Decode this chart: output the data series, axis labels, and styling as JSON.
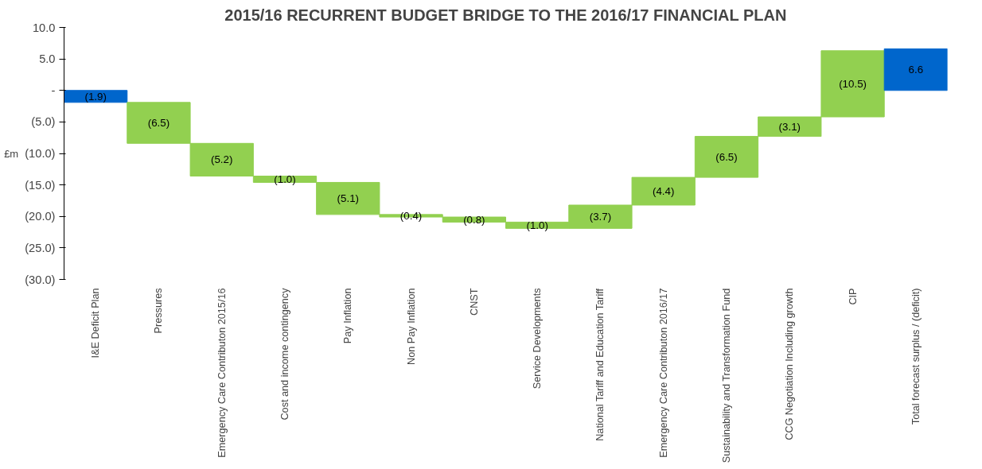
{
  "chart_data": {
    "type": "bar",
    "title": "2015/16 RECURRENT BUDGET BRIDGE TO THE 2016/17 FINANCIAL PLAN",
    "ylabel": "£m",
    "categories": [
      "I&E Deficit Plan",
      "Pressures",
      "Emergency Care Contributon 2015/16",
      "Cost and income contingency",
      "Pay Inflation",
      "Non Pay Inflation",
      "CNST",
      "Service Developments",
      "National Tariff and Education Tariff",
      "Emergency Care Contributon 2016/17",
      "Sustainability and Transformation Fund",
      "CCG Negotiation Including growth",
      "CIP",
      "Total forecast surplus / (deficit)"
    ],
    "values": [
      -1.9,
      -6.5,
      -5.2,
      -1.0,
      -5.1,
      -0.4,
      -0.8,
      -1.0,
      3.7,
      4.4,
      6.5,
      3.1,
      10.5,
      6.6
    ],
    "base": [
      0,
      -1.9,
      -8.4,
      -13.6,
      -14.6,
      -19.7,
      -20.1,
      -20.9,
      -21.9,
      -18.2,
      -13.8,
      -7.3,
      -4.2,
      0
    ],
    "colors": [
      "#0066cc",
      "#92d050",
      "#92d050",
      "#92d050",
      "#92d050",
      "#92d050",
      "#92d050",
      "#92d050",
      "#92d050",
      "#92d050",
      "#92d050",
      "#92d050",
      "#92d050",
      "#0066cc"
    ],
    "value_labels": [
      "(1.9)",
      "(6.5)",
      "(5.2)",
      "(1.0)",
      "(5.1)",
      "(0.4)",
      "(0.8)",
      "(1.0)",
      "(3.7)",
      "(4.4)",
      "(6.5)",
      "(3.1)",
      "(10.5)",
      "6.6"
    ],
    "ylim": [
      -30,
      10
    ],
    "yticks": [
      {
        "value": 10,
        "label": "10.0"
      },
      {
        "value": 5,
        "label": "5.0"
      },
      {
        "value": 0,
        "label": "-"
      },
      {
        "value": -5,
        "label": "(5.0)"
      },
      {
        "value": -10,
        "label": "(10.0)"
      },
      {
        "value": -15,
        "label": "(15.0)"
      },
      {
        "value": -20,
        "label": "(20.0)"
      },
      {
        "value": -25,
        "label": "(25.0)"
      },
      {
        "value": -30,
        "label": "(30.0)"
      }
    ],
    "grid": false
  }
}
